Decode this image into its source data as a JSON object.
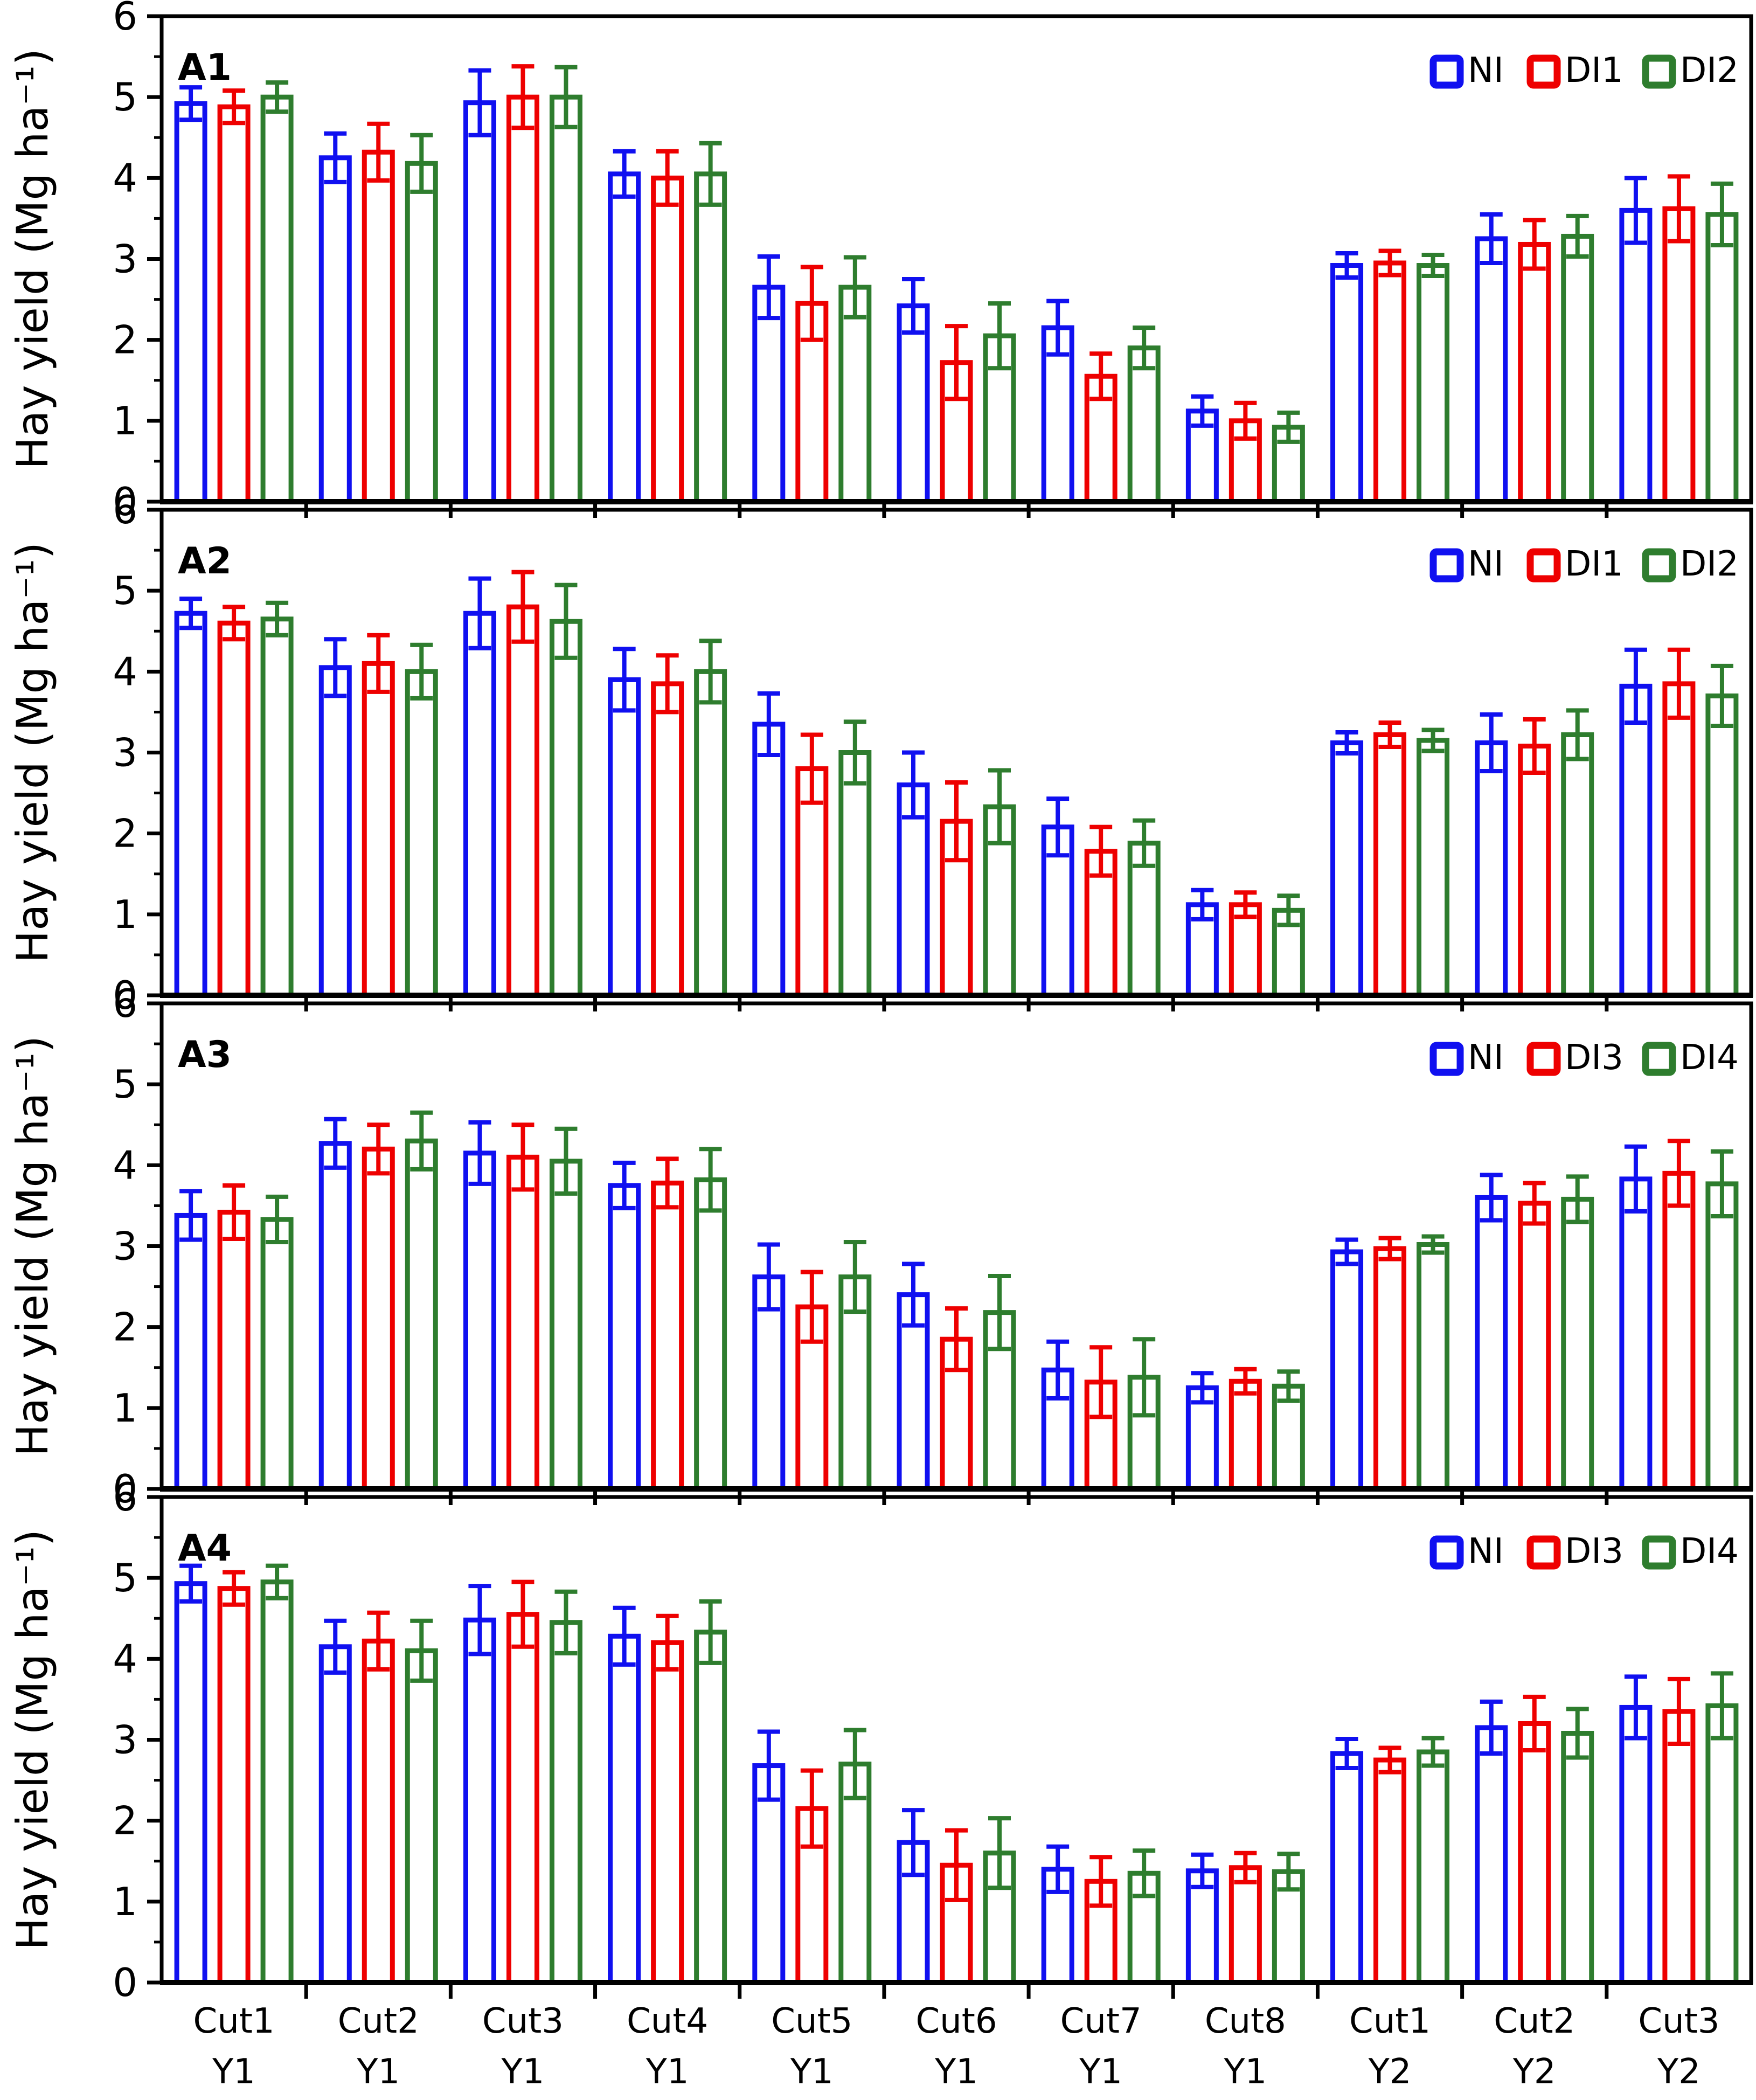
{
  "figure": {
    "background": "#ffffff",
    "axis_color": "#000000",
    "ylabel": "Hay yield (Mg ha⁻¹)",
    "series_colors": {
      "NI": "#1010f0",
      "DI1": "#ee0000",
      "DI2": "#2e7d2e",
      "DI3": "#ee0000",
      "DI4": "#2e7d2e"
    }
  },
  "x_axis": {
    "categories_line1": [
      "Cut1",
      "Cut2",
      "Cut3",
      "Cut4",
      "Cut5",
      "Cut6",
      "Cut7",
      "Cut8",
      "Cut1",
      "Cut2",
      "Cut3"
    ],
    "categories_line2": [
      "Y1",
      "Y1",
      "Y1",
      "Y1",
      "Y1",
      "Y1",
      "Y1",
      "Y1",
      "Y2",
      "Y2",
      "Y2"
    ]
  },
  "chart_data": [
    {
      "type": "bar",
      "panel_label": "A1",
      "ylabel": "Hay yield (Mg ha⁻¹)",
      "ylim": [
        0,
        6
      ],
      "ytick_step": 1,
      "yminor_step": 0.5,
      "grid": false,
      "legend_position": "top-right",
      "categories": [
        "Cut1 Y1",
        "Cut2 Y1",
        "Cut3 Y1",
        "Cut4 Y1",
        "Cut5 Y1",
        "Cut6 Y1",
        "Cut7 Y1",
        "Cut8 Y1",
        "Cut1 Y2",
        "Cut2 Y2",
        "Cut3 Y2"
      ],
      "series": [
        {
          "name": "NI",
          "color": "#1010f0",
          "values": [
            4.92,
            4.25,
            4.93,
            4.05,
            2.65,
            2.42,
            2.15,
            1.12,
            2.92,
            3.25,
            3.6
          ],
          "errors": [
            0.2,
            0.3,
            0.4,
            0.28,
            0.38,
            0.33,
            0.33,
            0.18,
            0.15,
            0.3,
            0.4
          ]
        },
        {
          "name": "DI1",
          "color": "#ee0000",
          "values": [
            4.88,
            4.32,
            5.0,
            4.0,
            2.45,
            1.72,
            1.55,
            1.0,
            2.95,
            3.18,
            3.62
          ],
          "errors": [
            0.2,
            0.35,
            0.38,
            0.33,
            0.45,
            0.45,
            0.28,
            0.22,
            0.15,
            0.3,
            0.4
          ]
        },
        {
          "name": "DI2",
          "color": "#2e7d2e",
          "values": [
            5.0,
            4.18,
            5.0,
            4.05,
            2.65,
            2.05,
            1.9,
            0.92,
            2.92,
            3.28,
            3.55
          ],
          "errors": [
            0.18,
            0.35,
            0.37,
            0.38,
            0.37,
            0.4,
            0.25,
            0.18,
            0.13,
            0.25,
            0.38
          ]
        }
      ]
    },
    {
      "type": "bar",
      "panel_label": "A2",
      "ylabel": "Hay yield (Mg ha⁻¹)",
      "ylim": [
        0,
        6
      ],
      "ytick_step": 1,
      "yminor_step": 0.5,
      "grid": false,
      "legend_position": "top-right",
      "categories": [
        "Cut1 Y1",
        "Cut2 Y1",
        "Cut3 Y1",
        "Cut4 Y1",
        "Cut5 Y1",
        "Cut6 Y1",
        "Cut7 Y1",
        "Cut8 Y1",
        "Cut1 Y2",
        "Cut2 Y2",
        "Cut3 Y2"
      ],
      "series": [
        {
          "name": "NI",
          "color": "#1010f0",
          "values": [
            4.72,
            4.05,
            4.72,
            3.9,
            3.35,
            2.6,
            2.08,
            1.12,
            3.12,
            3.12,
            3.82
          ],
          "errors": [
            0.18,
            0.35,
            0.43,
            0.38,
            0.38,
            0.4,
            0.35,
            0.18,
            0.13,
            0.35,
            0.45
          ]
        },
        {
          "name": "DI1",
          "color": "#ee0000",
          "values": [
            4.6,
            4.1,
            4.8,
            3.85,
            2.8,
            2.15,
            1.78,
            1.12,
            3.22,
            3.08,
            3.85
          ],
          "errors": [
            0.2,
            0.35,
            0.43,
            0.35,
            0.42,
            0.48,
            0.3,
            0.15,
            0.15,
            0.33,
            0.42
          ]
        },
        {
          "name": "DI2",
          "color": "#2e7d2e",
          "values": [
            4.65,
            4.0,
            4.62,
            4.0,
            3.0,
            2.33,
            1.88,
            1.05,
            3.15,
            3.22,
            3.7
          ],
          "errors": [
            0.2,
            0.33,
            0.45,
            0.38,
            0.38,
            0.45,
            0.28,
            0.18,
            0.13,
            0.3,
            0.37
          ]
        }
      ]
    },
    {
      "type": "bar",
      "panel_label": "A3",
      "ylabel": "Hay yield (Mg ha⁻¹)",
      "ylim": [
        0,
        6
      ],
      "ytick_step": 1,
      "yminor_step": 0.5,
      "grid": false,
      "legend_position": "top-right",
      "categories": [
        "Cut1 Y1",
        "Cut2 Y1",
        "Cut3 Y1",
        "Cut4 Y1",
        "Cut5 Y1",
        "Cut6 Y1",
        "Cut7 Y1",
        "Cut8 Y1",
        "Cut1 Y2",
        "Cut2 Y2",
        "Cut3 Y2"
      ],
      "series": [
        {
          "name": "NI",
          "color": "#1010f0",
          "values": [
            3.38,
            4.27,
            4.15,
            3.75,
            2.62,
            2.4,
            1.47,
            1.25,
            2.93,
            3.6,
            3.83
          ],
          "errors": [
            0.3,
            0.3,
            0.38,
            0.28,
            0.4,
            0.38,
            0.35,
            0.18,
            0.15,
            0.28,
            0.4
          ]
        },
        {
          "name": "DI3",
          "color": "#ee0000",
          "values": [
            3.42,
            4.2,
            4.1,
            3.78,
            2.25,
            1.85,
            1.32,
            1.33,
            2.97,
            3.53,
            3.9
          ],
          "errors": [
            0.33,
            0.3,
            0.4,
            0.3,
            0.43,
            0.38,
            0.43,
            0.15,
            0.13,
            0.25,
            0.4
          ]
        },
        {
          "name": "DI4",
          "color": "#2e7d2e",
          "values": [
            3.33,
            4.3,
            4.05,
            3.82,
            2.62,
            2.18,
            1.38,
            1.27,
            3.02,
            3.58,
            3.77
          ],
          "errors": [
            0.28,
            0.35,
            0.4,
            0.38,
            0.43,
            0.45,
            0.47,
            0.18,
            0.1,
            0.28,
            0.4
          ]
        }
      ]
    },
    {
      "type": "bar",
      "panel_label": "A4",
      "ylabel": "Hay yield (Mg ha⁻¹)",
      "ylim": [
        0,
        6
      ],
      "ytick_step": 1,
      "yminor_step": 0.5,
      "grid": false,
      "legend_position": "top-right",
      "categories": [
        "Cut1 Y1",
        "Cut2 Y1",
        "Cut3 Y1",
        "Cut4 Y1",
        "Cut5 Y1",
        "Cut6 Y1",
        "Cut7 Y1",
        "Cut8 Y1",
        "Cut1 Y2",
        "Cut2 Y2",
        "Cut3 Y2"
      ],
      "series": [
        {
          "name": "NI",
          "color": "#1010f0",
          "values": [
            4.93,
            4.15,
            4.48,
            4.28,
            2.68,
            1.73,
            1.4,
            1.38,
            2.83,
            3.15,
            3.4
          ],
          "errors": [
            0.22,
            0.32,
            0.42,
            0.35,
            0.42,
            0.4,
            0.28,
            0.2,
            0.18,
            0.32,
            0.38
          ]
        },
        {
          "name": "DI3",
          "color": "#ee0000",
          "values": [
            4.87,
            4.22,
            4.55,
            4.2,
            2.15,
            1.45,
            1.25,
            1.42,
            2.75,
            3.2,
            3.35
          ],
          "errors": [
            0.2,
            0.35,
            0.4,
            0.33,
            0.47,
            0.43,
            0.3,
            0.18,
            0.15,
            0.33,
            0.4
          ]
        },
        {
          "name": "DI4",
          "color": "#2e7d2e",
          "values": [
            4.95,
            4.1,
            4.45,
            4.33,
            2.7,
            1.6,
            1.35,
            1.37,
            2.85,
            3.08,
            3.42
          ],
          "errors": [
            0.2,
            0.37,
            0.38,
            0.38,
            0.42,
            0.43,
            0.28,
            0.22,
            0.17,
            0.3,
            0.4
          ]
        }
      ]
    }
  ]
}
